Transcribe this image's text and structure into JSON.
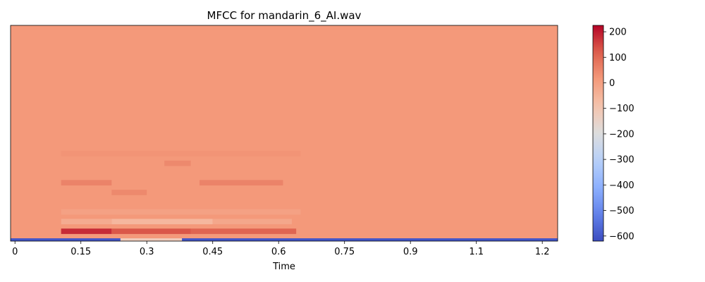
{
  "chart_data": {
    "type": "heatmap",
    "title": "MFCC for mandarin_6_AI.wav",
    "xlabel": "Time",
    "ylabel": "",
    "x_ticks": [
      "0",
      "0.15",
      "0.3",
      "0.45",
      "0.6",
      "0.75",
      "0.9",
      "1.1",
      "1.2"
    ],
    "x_tick_values": [
      0,
      0.15,
      0.3,
      0.45,
      0.6,
      0.75,
      0.9,
      1.05,
      1.2
    ],
    "xlim": [
      -0.01,
      1.235
    ],
    "n_coefficients": 20,
    "colorbar": {
      "colormap": "coolwarm",
      "range": [
        -620,
        225
      ],
      "ticks": [
        200,
        100,
        0,
        -100,
        -200,
        -300,
        -400,
        -500,
        -600
      ],
      "tick_labels": [
        "200",
        "100",
        "0",
        "−100",
        "−200",
        "−300",
        "−400",
        "−500",
        "−600"
      ]
    },
    "background_value": 15,
    "features": [
      {
        "t0": -0.01,
        "t1": 1.235,
        "coef": 0,
        "value": -600
      },
      {
        "t0": 0.105,
        "t1": 0.22,
        "coef": 1,
        "value": 180
      },
      {
        "t0": 0.22,
        "t1": 0.4,
        "coef": 1,
        "value": 130
      },
      {
        "t0": 0.4,
        "t1": 0.64,
        "coef": 1,
        "value": 110
      },
      {
        "t0": 0.24,
        "t1": 0.38,
        "coef": 0,
        "value": -120
      },
      {
        "t0": 0.105,
        "t1": 0.22,
        "coef": 2,
        "value": -30
      },
      {
        "t0": 0.22,
        "t1": 0.45,
        "coef": 2,
        "value": -60
      },
      {
        "t0": 0.45,
        "t1": 0.63,
        "coef": 2,
        "value": -20
      },
      {
        "t0": 0.105,
        "t1": 0.65,
        "coef": 3,
        "value": -5
      },
      {
        "t0": 0.105,
        "t1": 0.22,
        "coef": 6,
        "value": 55
      },
      {
        "t0": 0.42,
        "t1": 0.61,
        "coef": 6,
        "value": 55
      },
      {
        "t0": 0.22,
        "t1": 0.3,
        "coef": 5,
        "value": 45
      },
      {
        "t0": 0.34,
        "t1": 0.4,
        "coef": 8,
        "value": 45
      },
      {
        "t0": 0.105,
        "t1": 0.65,
        "coef": 9,
        "value": 25
      }
    ]
  }
}
